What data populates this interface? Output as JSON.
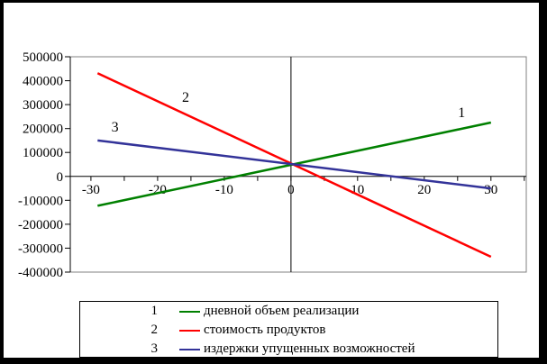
{
  "frame": {
    "border_color": "#000000",
    "background": "#ffffff"
  },
  "chart_data": {
    "type": "line",
    "title": "",
    "xlabel": "",
    "ylabel": "",
    "grid": false,
    "legend_position": "bottom",
    "plot_border_color": "#808080",
    "axis_color": "#000000",
    "x_axis": {
      "range": [
        -33.1,
        35.3
      ],
      "ticks": [
        -30,
        -20,
        -10,
        0,
        10,
        20,
        30
      ],
      "minor_tick_step": 5
    },
    "y_axis": {
      "range": [
        -400000,
        500000
      ],
      "ticks": [
        500000,
        400000,
        300000,
        200000,
        100000,
        0,
        -100000,
        -200000,
        -300000,
        -400000
      ]
    },
    "series": [
      {
        "index": "1",
        "name": "дневной объем реализации",
        "color": "#008000",
        "points": [
          [
            -29,
            -123000
          ],
          [
            30,
            225000
          ]
        ]
      },
      {
        "index": "2",
        "name": "стоимость продуктов",
        "color": "#ff0000",
        "points": [
          [
            -29,
            431000
          ],
          [
            30,
            -336000
          ]
        ]
      },
      {
        "index": "3",
        "name": "издержки упущенных возможностей",
        "color": "#333399",
        "points": [
          [
            -29,
            150000
          ],
          [
            30,
            -50000
          ]
        ]
      }
    ],
    "annotations": [
      {
        "text": "1",
        "x": 25.6,
        "y": 267000
      },
      {
        "text": "2",
        "x": -15.8,
        "y": 331000
      },
      {
        "text": "3",
        "x": -26.4,
        "y": 206000
      }
    ]
  }
}
